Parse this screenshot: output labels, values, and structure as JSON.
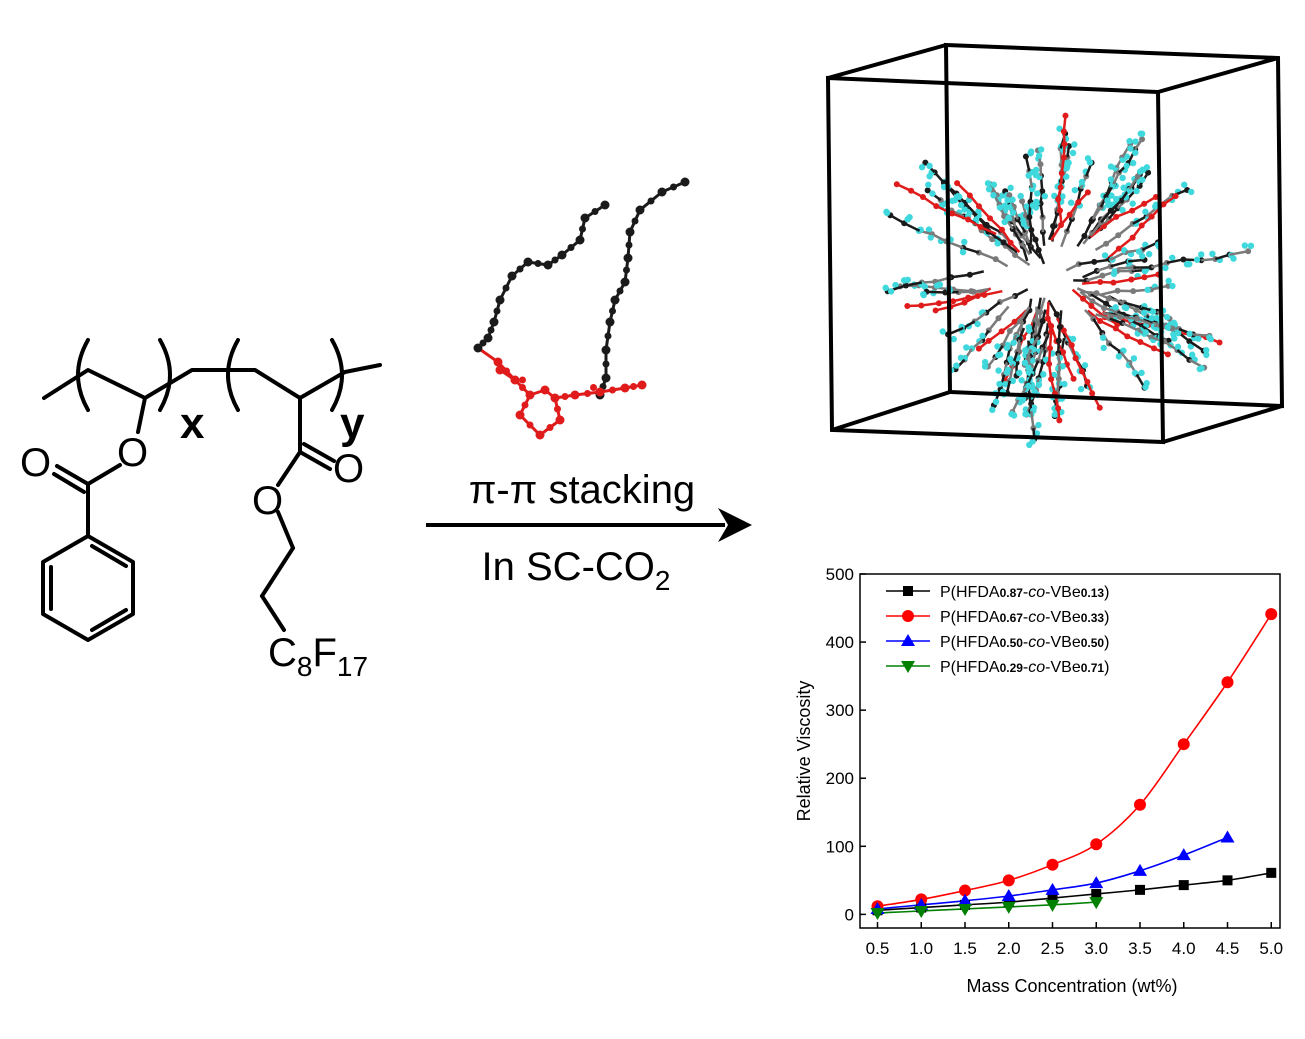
{
  "structure": {
    "sub_x": "x",
    "sub_y": "y",
    "o_ester1": "O",
    "o_ring1": "O",
    "o_ester2": "O",
    "o_carbonyl2": "O",
    "tail": {
      "c": "C",
      "c_sub": "8",
      "f": "F",
      "f_sub": "17"
    }
  },
  "arrow": {
    "top_label": "π-π stacking",
    "bottom_label": "In SC-CO",
    "bottom_sub": "2"
  },
  "colors": {
    "black_chain": "#1a1a1a",
    "red_ring": "#e01b1b",
    "fluorine": "#3fd8dc",
    "carbon": "#7a7a7a"
  },
  "chart_data": {
    "type": "line",
    "xlabel": "Mass Concentration (wt%)",
    "ylabel": "Relative Viscosity",
    "xlim": [
      0.3,
      5.1
    ],
    "ylim": [
      -20,
      500
    ],
    "xticks": [
      "0.5",
      "1.0",
      "1.5",
      "2.0",
      "2.5",
      "3.0",
      "3.5",
      "4.0",
      "4.5",
      "5.0"
    ],
    "yticks": [
      "0",
      "100",
      "200",
      "300",
      "400",
      "500"
    ],
    "legend_position": "top-left",
    "series": [
      {
        "name": "P(HFDA0.87-co-VBe0.13)",
        "name_parts": [
          "P(HFDA",
          "0.87",
          "-",
          "co",
          "-VBe",
          "0.13",
          ")"
        ],
        "color": "#000000",
        "marker": "square",
        "x": [
          0.5,
          1.0,
          1.5,
          2.0,
          2.5,
          3.0,
          3.5,
          4.0,
          4.5,
          5.0
        ],
        "y": [
          6,
          10,
          14,
          18,
          24,
          30,
          36,
          43,
          50,
          61
        ]
      },
      {
        "name": "P(HFDA0.67-co-VBe0.33)",
        "name_parts": [
          "P(HFDA",
          "0.67",
          "-",
          "co",
          "-VBe",
          "0.33",
          ")"
        ],
        "color": "#ff0000",
        "marker": "circle",
        "x": [
          0.5,
          1.0,
          1.5,
          2.0,
          2.5,
          3.0,
          3.5,
          4.0,
          4.5,
          5.0
        ],
        "y": [
          12,
          22,
          35,
          50,
          73,
          103,
          161,
          250,
          341,
          441
        ]
      },
      {
        "name": "P(HFDA0.50-co-VBe0.50)",
        "name_parts": [
          "P(HFDA",
          "0.50",
          "-",
          "co",
          "-VBe",
          "0.50",
          ")"
        ],
        "color": "#0000ff",
        "marker": "triangle-up",
        "x": [
          0.5,
          1.0,
          1.5,
          2.0,
          2.5,
          3.0,
          3.5,
          4.0,
          4.5
        ],
        "y": [
          8,
          14,
          20,
          27,
          36,
          46,
          64,
          87,
          113
        ]
      },
      {
        "name": "P(HFDA0.29-co-VBe0.71)",
        "name_parts": [
          "P(HFDA",
          "0.29",
          "-",
          "co",
          "-VBe",
          "0.71",
          ")"
        ],
        "color": "#008000",
        "marker": "triangle-down",
        "x": [
          0.5,
          1.0,
          1.5,
          2.0,
          2.5,
          3.0
        ],
        "y": [
          2,
          5,
          8,
          11,
          14,
          18
        ]
      }
    ]
  }
}
